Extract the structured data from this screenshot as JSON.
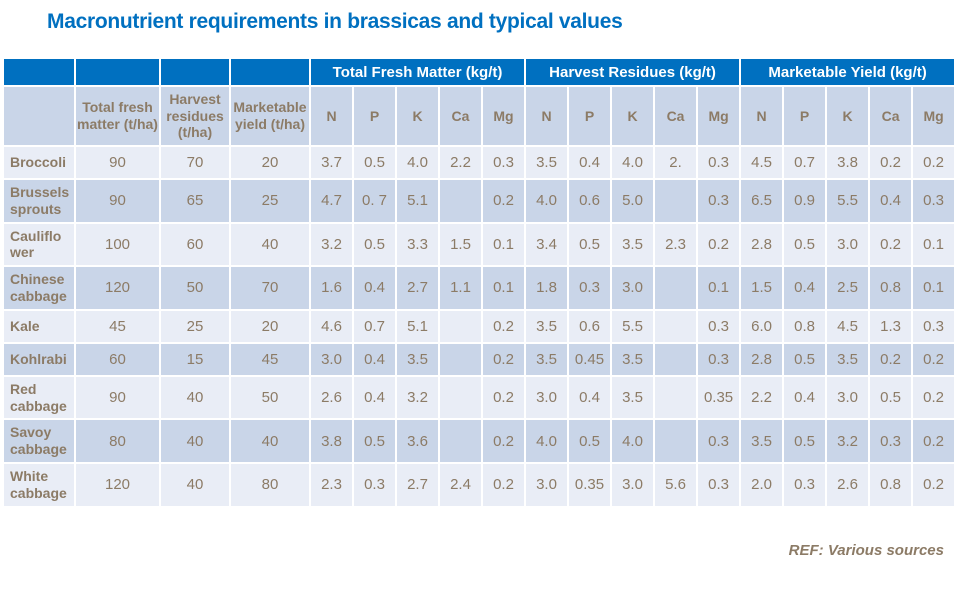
{
  "title": "Macronutrient requirements in brassicas and typical values",
  "reference": "REF: Various sources",
  "colors": {
    "header_blue": "#0070C0",
    "title_blue": "#0070C0",
    "row_light": "#E9EDF6",
    "row_dark": "#C9D5E8",
    "text_brown": "#8C7B66"
  },
  "table": {
    "corner_headers": [
      "",
      "Total fresh matter (t/ha)",
      "Harvest residues (t/ha)",
      "Marketable yield (t/ha)"
    ],
    "groups": [
      {
        "label": "Total Fresh Matter (kg/t)",
        "columns": [
          "N",
          "P",
          "K",
          "Ca",
          "Mg"
        ]
      },
      {
        "label": "Harvest Residues (kg/t)",
        "columns": [
          "N",
          "P",
          "K",
          "Ca",
          "Mg"
        ]
      },
      {
        "label": "Marketable Yield (kg/t)",
        "columns": [
          "N",
          "P",
          "K",
          "Ca",
          "Mg"
        ]
      }
    ],
    "rows": [
      {
        "crop": "Broccoli",
        "total_fresh_matter_t_ha": "90",
        "harvest_residues_t_ha": "70",
        "marketable_yield_t_ha": "20",
        "total_fresh_matter_kg_t": [
          "3.7",
          "0.5",
          "4.0",
          "2.2",
          "0.3"
        ],
        "harvest_residues_kg_t": [
          "3.5",
          "0.4",
          "4.0",
          "2.",
          "0.3"
        ],
        "marketable_yield_kg_t": [
          "4.5",
          "0.7",
          "3.8",
          "0.2",
          "0.2"
        ]
      },
      {
        "crop": "Brussels sprouts",
        "total_fresh_matter_t_ha": "90",
        "harvest_residues_t_ha": "65",
        "marketable_yield_t_ha": "25",
        "total_fresh_matter_kg_t": [
          "4.7",
          "0. 7",
          "5.1",
          "",
          "0.2"
        ],
        "harvest_residues_kg_t": [
          "4.0",
          "0.6",
          "5.0",
          "",
          "0.3"
        ],
        "marketable_yield_kg_t": [
          "6.5",
          "0.9",
          "5.5",
          "0.4",
          "0.3"
        ]
      },
      {
        "crop": "Cauliflower",
        "total_fresh_matter_t_ha": "100",
        "harvest_residues_t_ha": "60",
        "marketable_yield_t_ha": "40",
        "total_fresh_matter_kg_t": [
          "3.2",
          "0.5",
          "3.3",
          "1.5",
          "0.1"
        ],
        "harvest_residues_kg_t": [
          "3.4",
          "0.5",
          "3.5",
          "2.3",
          "0.2"
        ],
        "marketable_yield_kg_t": [
          "2.8",
          "0.5",
          "3.0",
          "0.2",
          "0.1"
        ]
      },
      {
        "crop": "Chinese cabbage",
        "total_fresh_matter_t_ha": "120",
        "harvest_residues_t_ha": "50",
        "marketable_yield_t_ha": "70",
        "total_fresh_matter_kg_t": [
          "1.6",
          "0.4",
          "2.7",
          "1.1",
          "0.1"
        ],
        "harvest_residues_kg_t": [
          "1.8",
          "0.3",
          "3.0",
          "",
          "0.1"
        ],
        "marketable_yield_kg_t": [
          "1.5",
          "0.4",
          "2.5",
          "0.8",
          "0.1"
        ]
      },
      {
        "crop": "Kale",
        "total_fresh_matter_t_ha": "45",
        "harvest_residues_t_ha": "25",
        "marketable_yield_t_ha": "20",
        "total_fresh_matter_kg_t": [
          "4.6",
          "0.7",
          "5.1",
          "",
          "0.2"
        ],
        "harvest_residues_kg_t": [
          "3.5",
          "0.6",
          "5.5",
          "",
          "0.3"
        ],
        "marketable_yield_kg_t": [
          "6.0",
          "0.8",
          "4.5",
          "1.3",
          "0.3"
        ]
      },
      {
        "crop": "Kohlrabi",
        "total_fresh_matter_t_ha": "60",
        "harvest_residues_t_ha": "15",
        "marketable_yield_t_ha": "45",
        "total_fresh_matter_kg_t": [
          "3.0",
          "0.4",
          "3.5",
          "",
          "0.2"
        ],
        "harvest_residues_kg_t": [
          "3.5",
          "0.45",
          "3.5",
          "",
          "0.3"
        ],
        "marketable_yield_kg_t": [
          "2.8",
          "0.5",
          "3.5",
          "0.2",
          "0.2"
        ]
      },
      {
        "crop": "Red cabbage",
        "total_fresh_matter_t_ha": "90",
        "harvest_residues_t_ha": "40",
        "marketable_yield_t_ha": "50",
        "total_fresh_matter_kg_t": [
          "2.6",
          "0.4",
          "3.2",
          "",
          "0.2"
        ],
        "harvest_residues_kg_t": [
          "3.0",
          "0.4",
          "3.5",
          "",
          "0.35"
        ],
        "marketable_yield_kg_t": [
          "2.2",
          "0.4",
          "3.0",
          "0.5",
          "0.2"
        ]
      },
      {
        "crop": "Savoy cabbage",
        "total_fresh_matter_t_ha": "80",
        "harvest_residues_t_ha": "40",
        "marketable_yield_t_ha": "40",
        "total_fresh_matter_kg_t": [
          "3.8",
          "0.5",
          "3.6",
          "",
          "0.2"
        ],
        "harvest_residues_kg_t": [
          "4.0",
          "0.5",
          "4.0",
          "",
          "0.3"
        ],
        "marketable_yield_kg_t": [
          "3.5",
          "0.5",
          "3.2",
          "0.3",
          "0.2"
        ]
      },
      {
        "crop": "White cabbage",
        "total_fresh_matter_t_ha": "120",
        "harvest_residues_t_ha": "40",
        "marketable_yield_t_ha": "80",
        "total_fresh_matter_kg_t": [
          "2.3",
          "0.3",
          "2.7",
          "2.4",
          "0.2"
        ],
        "harvest_residues_kg_t": [
          "3.0",
          "0.35",
          "3.0",
          "5.6",
          "0.3"
        ],
        "marketable_yield_kg_t": [
          "2.0",
          "0.3",
          "2.6",
          "0.8",
          "0.2"
        ]
      }
    ]
  }
}
